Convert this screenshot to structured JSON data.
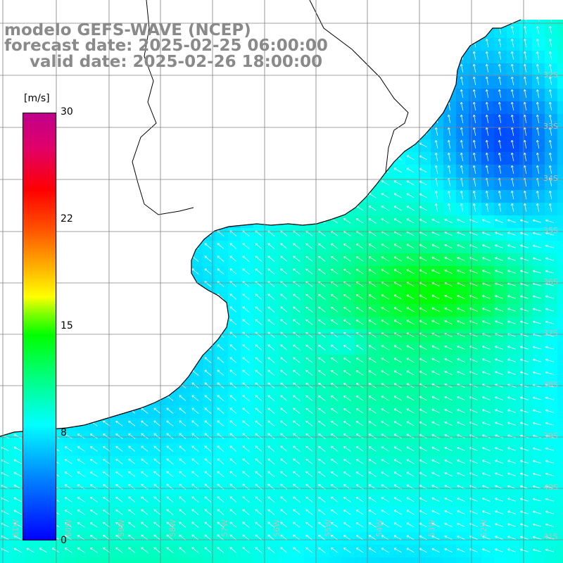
{
  "header": {
    "line1": "modelo GEFS-WAVE (NCEP)",
    "line2": "forecast date: 2025-02-25 06:00:00",
    "line3": "valid date: 2025-02-26 18:00:00"
  },
  "colorbar": {
    "units": "[m/s]",
    "ticks": [
      "30",
      "22",
      "15",
      "8",
      "0"
    ],
    "range": [
      0,
      30
    ],
    "colors": [
      "#0000ff",
      "#0080ff",
      "#00ffff",
      "#00ff80",
      "#00ff00",
      "#80ff00",
      "#ffff00",
      "#ff5000",
      "#ff0000",
      "#c0008a"
    ]
  },
  "grid": {
    "lat_labels": [
      "32S",
      "33S",
      "34S",
      "35S",
      "36S",
      "37S",
      "38S",
      "39S",
      "40S",
      "41S"
    ],
    "lon_labels": [
      "61W",
      "60W",
      "59W",
      "58W",
      "57W",
      "56W",
      "55W",
      "54W",
      "53W",
      "52W"
    ]
  },
  "colors": {
    "land": "#ffffff",
    "coast": "#000000",
    "grid": "#808080",
    "arrows": "#ffffff",
    "title": "#8a8a8a"
  }
}
